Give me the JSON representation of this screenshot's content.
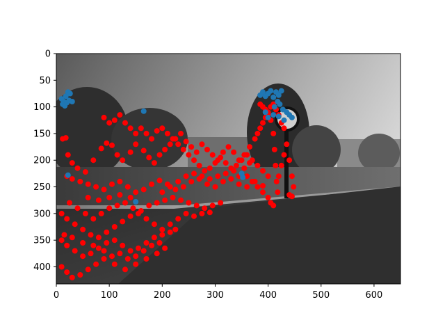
{
  "chart_data": {
    "type": "scatter",
    "title": "",
    "xlabel": "",
    "ylabel": "",
    "xlim": [
      0,
      650
    ],
    "ylim": [
      432,
      0
    ],
    "y_inverted": true,
    "grid": false,
    "legend": "none",
    "background": "grayscale photo of a campus quad: trees, lamp post with round clock, paved walkway in shadow",
    "x_ticks": [
      0,
      100,
      200,
      300,
      400,
      500,
      600
    ],
    "y_ticks": [
      0,
      50,
      100,
      150,
      200,
      250,
      300,
      350,
      400
    ],
    "series": [
      {
        "color": "#ff0000",
        "points": [
          [
            12,
            160
          ],
          [
            18,
            158
          ],
          [
            22,
            190
          ],
          [
            30,
            205
          ],
          [
            40,
            215
          ],
          [
            55,
            222
          ],
          [
            70,
            200
          ],
          [
            85,
            178
          ],
          [
            95,
            168
          ],
          [
            105,
            172
          ],
          [
            115,
            190
          ],
          [
            125,
            200
          ],
          [
            140,
            185
          ],
          [
            150,
            170
          ],
          [
            165,
            182
          ],
          [
            175,
            195
          ],
          [
            185,
            205
          ],
          [
            195,
            190
          ],
          [
            205,
            180
          ],
          [
            215,
            170
          ],
          [
            225,
            160
          ],
          [
            235,
            150
          ],
          [
            245,
            165
          ],
          [
            255,
            175
          ],
          [
            265,
            185
          ],
          [
            275,
            170
          ],
          [
            285,
            180
          ],
          [
            295,
            190
          ],
          [
            305,
            200
          ],
          [
            315,
            185
          ],
          [
            325,
            175
          ],
          [
            335,
            185
          ],
          [
            345,
            200
          ],
          [
            355,
            190
          ],
          [
            365,
            175
          ],
          [
            375,
            160
          ],
          [
            380,
            150
          ],
          [
            385,
            140
          ],
          [
            390,
            130
          ],
          [
            395,
            120
          ],
          [
            400,
            115
          ],
          [
            405,
            125
          ],
          [
            410,
            150
          ],
          [
            412,
            180
          ],
          [
            414,
            210
          ],
          [
            416,
            240
          ],
          [
            418,
            260
          ],
          [
            420,
            230
          ],
          [
            425,
            210
          ],
          [
            430,
            190
          ],
          [
            435,
            170
          ],
          [
            440,
            200
          ],
          [
            445,
            230
          ],
          [
            448,
            250
          ],
          [
            20,
            230
          ],
          [
            30,
            235
          ],
          [
            45,
            240
          ],
          [
            60,
            245
          ],
          [
            75,
            250
          ],
          [
            90,
            255
          ],
          [
            105,
            245
          ],
          [
            120,
            240
          ],
          [
            135,
            250
          ],
          [
            150,
            260
          ],
          [
            165,
            255
          ],
          [
            180,
            245
          ],
          [
            195,
            238
          ],
          [
            210,
            245
          ],
          [
            225,
            255
          ],
          [
            240,
            250
          ],
          [
            255,
            240
          ],
          [
            270,
            235
          ],
          [
            285,
            245
          ],
          [
            300,
            250
          ],
          [
            315,
            240
          ],
          [
            330,
            235
          ],
          [
            345,
            245
          ],
          [
            360,
            250
          ],
          [
            375,
            240
          ],
          [
            390,
            248
          ],
          [
            10,
            300
          ],
          [
            20,
            310
          ],
          [
            35,
            320
          ],
          [
            50,
            330
          ],
          [
            65,
            340
          ],
          [
            80,
            345
          ],
          [
            95,
            335
          ],
          [
            110,
            325
          ],
          [
            125,
            315
          ],
          [
            140,
            305
          ],
          [
            155,
            300
          ],
          [
            170,
            310
          ],
          [
            185,
            320
          ],
          [
            200,
            330
          ],
          [
            215,
            320
          ],
          [
            230,
            310
          ],
          [
            245,
            300
          ],
          [
            260,
            305
          ],
          [
            275,
            300
          ],
          [
            290,
            298
          ],
          [
            10,
            350
          ],
          [
            20,
            360
          ],
          [
            35,
            370
          ],
          [
            50,
            380
          ],
          [
            65,
            375
          ],
          [
            80,
            365
          ],
          [
            95,
            355
          ],
          [
            110,
            350
          ],
          [
            125,
            360
          ],
          [
            140,
            370
          ],
          [
            155,
            365
          ],
          [
            170,
            355
          ],
          [
            185,
            345
          ],
          [
            200,
            340
          ],
          [
            215,
            335
          ],
          [
            225,
            330
          ],
          [
            10,
            400
          ],
          [
            20,
            410
          ],
          [
            30,
            420
          ],
          [
            45,
            415
          ],
          [
            60,
            405
          ],
          [
            75,
            395
          ],
          [
            90,
            385
          ],
          [
            105,
            380
          ],
          [
            120,
            375
          ],
          [
            135,
            385
          ],
          [
            150,
            380
          ],
          [
            165,
            370
          ],
          [
            180,
            360
          ],
          [
            195,
            355
          ],
          [
            25,
            280
          ],
          [
            40,
            290
          ],
          [
            55,
            300
          ],
          [
            70,
            310
          ],
          [
            85,
            300
          ],
          [
            100,
            290
          ],
          [
            115,
            285
          ],
          [
            130,
            280
          ],
          [
            145,
            290
          ],
          [
            160,
            295
          ],
          [
            175,
            285
          ],
          [
            190,
            280
          ],
          [
            205,
            275
          ],
          [
            220,
            270
          ],
          [
            235,
            275
          ],
          [
            250,
            280
          ],
          [
            265,
            285
          ],
          [
            280,
            290
          ],
          [
            295,
            285
          ],
          [
            310,
            280
          ],
          [
            160,
            140
          ],
          [
            170,
            150
          ],
          [
            180,
            160
          ],
          [
            190,
            145
          ],
          [
            200,
            140
          ],
          [
            210,
            150
          ],
          [
            220,
            160
          ],
          [
            230,
            170
          ],
          [
            240,
            180
          ],
          [
            250,
            190
          ],
          [
            260,
            200
          ],
          [
            270,
            210
          ],
          [
            280,
            220
          ],
          [
            290,
            215
          ],
          [
            300,
            205
          ],
          [
            310,
            195
          ],
          [
            320,
            205
          ],
          [
            330,
            215
          ],
          [
            340,
            210
          ],
          [
            350,
            200
          ],
          [
            360,
            190
          ],
          [
            370,
            200
          ],
          [
            380,
            210
          ],
          [
            390,
            220
          ],
          [
            400,
            230
          ],
          [
            440,
            265
          ],
          [
            445,
            268
          ],
          [
            90,
            120
          ],
          [
            100,
            130
          ],
          [
            110,
            125
          ],
          [
            120,
            115
          ],
          [
            130,
            130
          ],
          [
            140,
            140
          ],
          [
            150,
            150
          ],
          [
            15,
            340
          ],
          [
            30,
            345
          ],
          [
            50,
            355
          ],
          [
            70,
            360
          ],
          [
            90,
            370
          ],
          [
            110,
            395
          ],
          [
            130,
            405
          ],
          [
            150,
            395
          ],
          [
            170,
            385
          ],
          [
            190,
            375
          ],
          [
            205,
            365
          ],
          [
            385,
            95
          ],
          [
            390,
            100
          ],
          [
            395,
            105
          ],
          [
            400,
            110
          ],
          [
            405,
            100
          ],
          [
            410,
            95
          ],
          [
            415,
            105
          ],
          [
            420,
            115
          ],
          [
            425,
            130
          ],
          [
            430,
            140
          ],
          [
            360,
            230
          ],
          [
            370,
            240
          ],
          [
            380,
            250
          ],
          [
            390,
            260
          ],
          [
            400,
            270
          ],
          [
            405,
            280
          ],
          [
            410,
            285
          ],
          [
            60,
            270
          ],
          [
            80,
            275
          ],
          [
            100,
            270
          ],
          [
            120,
            265
          ],
          [
            140,
            270
          ],
          [
            200,
            260
          ],
          [
            215,
            250
          ],
          [
            230,
            240
          ],
          [
            245,
            230
          ],
          [
            260,
            225
          ],
          [
            275,
            230
          ],
          [
            290,
            235
          ],
          [
            305,
            230
          ],
          [
            320,
            225
          ],
          [
            335,
            220
          ],
          [
            345,
            230
          ],
          [
            355,
            215
          ],
          [
            365,
            205
          ]
        ]
      },
      {
        "color": "#1f77b4",
        "points": [
          [
            10,
            85
          ],
          [
            14,
            90
          ],
          [
            18,
            80
          ],
          [
            22,
            72
          ],
          [
            26,
            75
          ],
          [
            12,
            95
          ],
          [
            16,
            98
          ],
          [
            20,
            92
          ],
          [
            24,
            88
          ],
          [
            30,
            90
          ],
          [
            165,
            108
          ],
          [
            385,
            78
          ],
          [
            390,
            72
          ],
          [
            395,
            80
          ],
          [
            400,
            75
          ],
          [
            405,
            70
          ],
          [
            410,
            82
          ],
          [
            415,
            72
          ],
          [
            420,
            78
          ],
          [
            425,
            70
          ],
          [
            418,
            90
          ],
          [
            422,
            95
          ],
          [
            412,
            100
          ],
          [
            428,
            105
          ],
          [
            435,
            110
          ],
          [
            440,
            115
          ],
          [
            445,
            120
          ],
          [
            430,
            125
          ],
          [
            420,
            118
          ],
          [
            410,
            115
          ],
          [
            400,
            120
          ],
          [
            395,
            110
          ],
          [
            350,
            225
          ],
          [
            352,
            232
          ],
          [
            150,
            278
          ],
          [
            22,
            228
          ]
        ]
      }
    ]
  }
}
